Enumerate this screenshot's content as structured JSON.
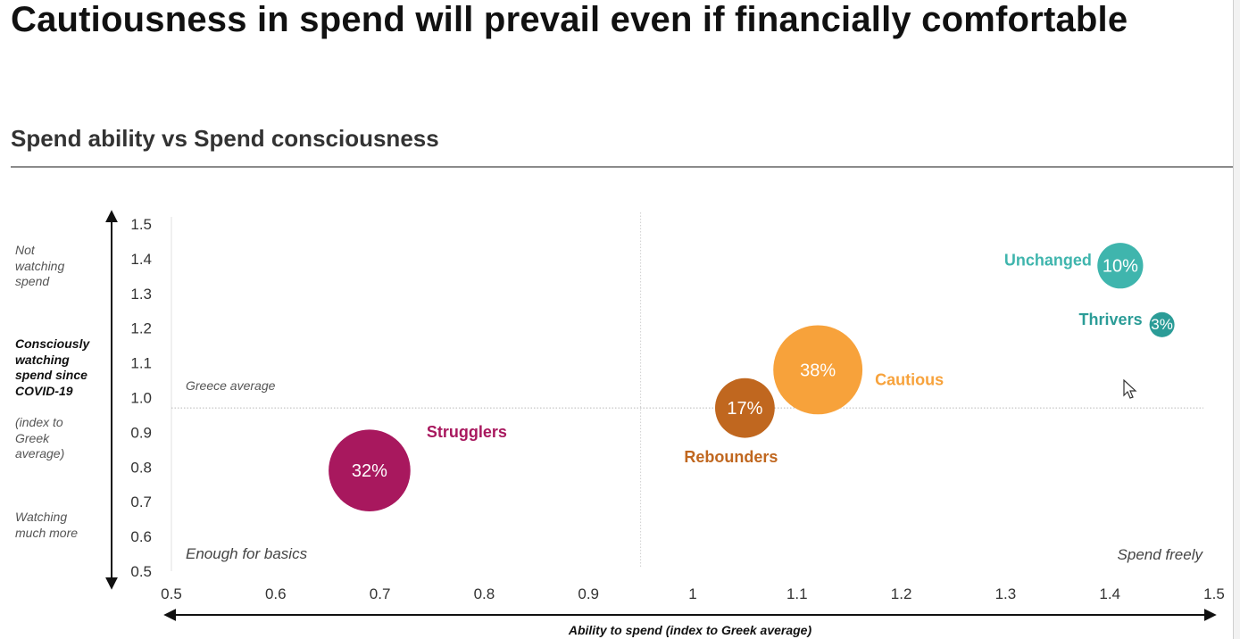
{
  "page": {
    "title": "Cautiousness in spend will prevail even if financially comfortable",
    "subtitle": "Spend ability vs Spend consciousness"
  },
  "y_axis_notes": {
    "top": "Not watching spend",
    "middle": "Consciously watching spend since COVID-19",
    "index_note": "(index to Greek average)",
    "bottom": "Watching much more"
  },
  "chart_data": {
    "type": "scatter",
    "title": "Spend ability vs Spend consciousness",
    "xlabel": "Ability to spend (index to Greek average)",
    "ylabel": "Consciously watching spend since COVID-19 (index to Greek average)",
    "xlim": [
      0.5,
      1.5
    ],
    "ylim": [
      0.5,
      1.5
    ],
    "x_ticks": [
      "0.5",
      "0.6",
      "0.7",
      "0.8",
      "0.9",
      "1",
      "1.1",
      "1.2",
      "1.3",
      "1.4",
      "1.5"
    ],
    "y_ticks": [
      "1.5",
      "1.4",
      "1.3",
      "1.2",
      "1.1",
      "1.0",
      "0.9",
      "0.8",
      "0.7",
      "0.6",
      "0.5"
    ],
    "reference_lines": {
      "horizontal": {
        "y": 0.97,
        "label": "Greece average"
      },
      "vertical": {
        "x": 0.95
      }
    },
    "quadrant_labels": {
      "bottom_left": "Enough for basics",
      "bottom_right": "Spend freely"
    },
    "grid": false,
    "series": [
      {
        "name": "Strugglers",
        "x": 0.69,
        "y": 0.79,
        "share": 32,
        "value_label": "32%",
        "color": "#a8185e"
      },
      {
        "name": "Rebounders",
        "x": 1.05,
        "y": 0.97,
        "share": 17,
        "value_label": "17%",
        "color": "#c0671f"
      },
      {
        "name": "Cautious",
        "x": 1.12,
        "y": 1.08,
        "share": 38,
        "value_label": "38%",
        "color": "#f7a23b"
      },
      {
        "name": "Unchanged",
        "x": 1.41,
        "y": 1.38,
        "share": 10,
        "value_label": "10%",
        "color": "#3fb5ad"
      },
      {
        "name": "Thrivers",
        "x": 1.45,
        "y": 1.21,
        "share": 3,
        "value_label": "3%",
        "color": "#2b9c97"
      }
    ]
  }
}
